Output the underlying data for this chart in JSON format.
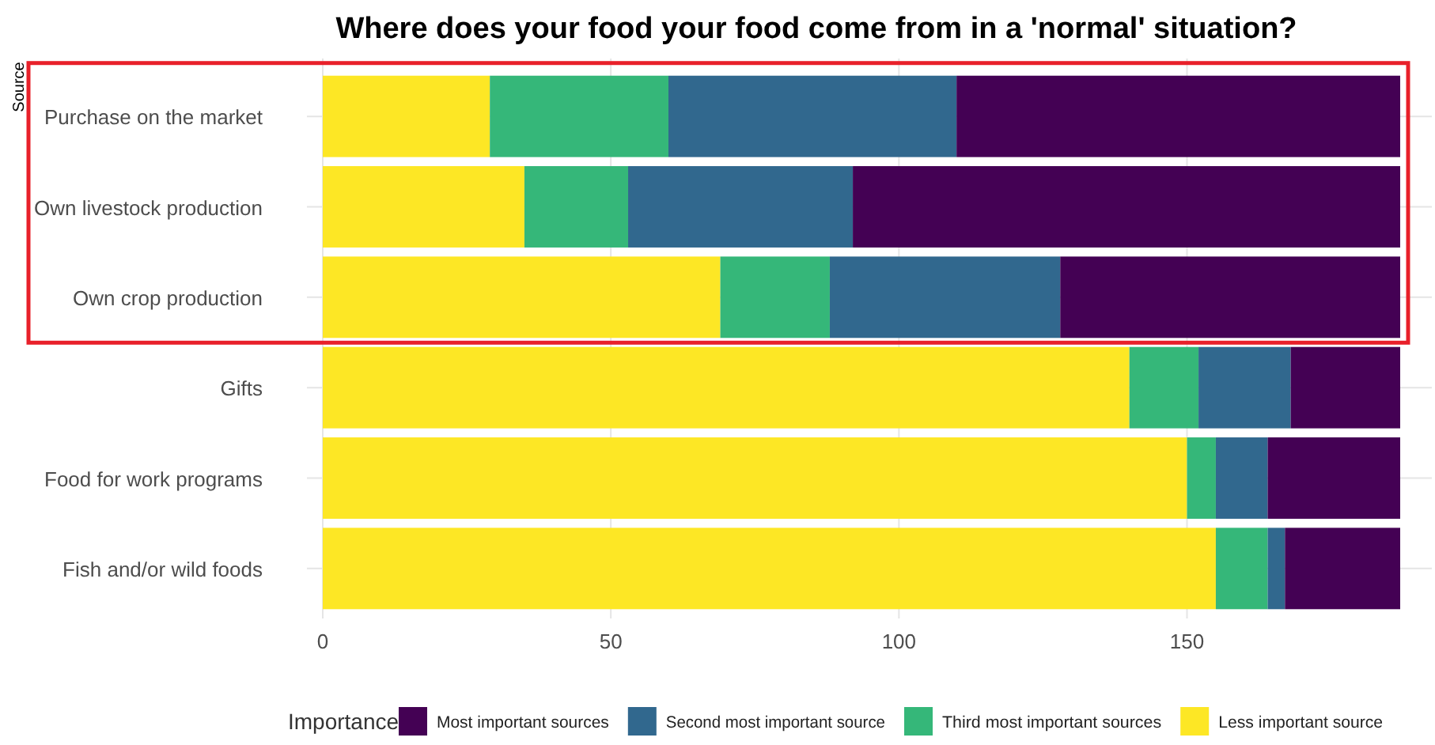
{
  "chart_data": {
    "type": "bar",
    "orientation": "horizontal",
    "stacked": true,
    "title": "Where does your food your food come from in a 'normal' situation?",
    "ylabel": "Source",
    "legend_title": "Importance",
    "legend": "bottom",
    "grid": true,
    "categories": [
      "Purchase on the market",
      "Own livestock production",
      "Own crop production",
      "Gifts",
      "Food for work programs",
      "Fish and/or wild foods"
    ],
    "xlim": [
      0,
      187
    ],
    "xticks": [
      0,
      50,
      100,
      150
    ],
    "series": [
      {
        "name": "Less important source",
        "color": "#fde725",
        "values": [
          29,
          35,
          69,
          140,
          150,
          155
        ]
      },
      {
        "name": "Third most important sources",
        "color": "#35b779",
        "values": [
          31,
          18,
          19,
          12,
          5,
          9
        ]
      },
      {
        "name": "Second most important source",
        "color": "#31688e",
        "values": [
          50,
          39,
          40,
          16,
          9,
          3
        ]
      },
      {
        "name": "Most important sources",
        "color": "#440154",
        "values": [
          77,
          95,
          59,
          19,
          23,
          20
        ]
      }
    ]
  }
}
